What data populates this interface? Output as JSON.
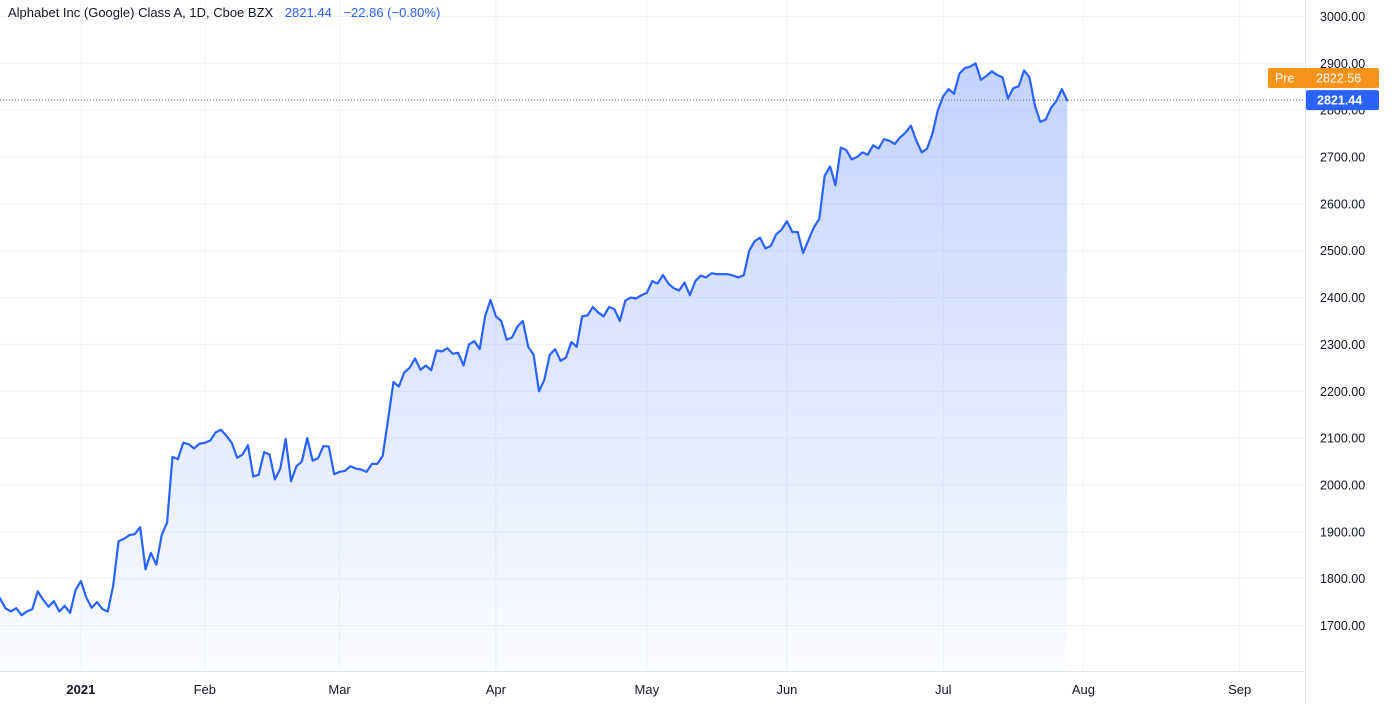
{
  "legend": {
    "symbol": "Alphabet Inc (Google) Class A, 1D, Cboe BZX",
    "last_value": "2821.44",
    "change": "−22.86 (−0.80%)"
  },
  "colors": {
    "line": "#2962ff",
    "area_top": "#2962ff",
    "grid": "#f0f3fa",
    "axis_text": "#131722",
    "legend_value": "#2962ff",
    "pre_badge": "#f7931a",
    "last_badge": "#2962ff",
    "price_line": "#5d606b"
  },
  "badges": {
    "pre_label": "Pre",
    "pre_value": "2822.56",
    "last_value": "2821.44"
  },
  "chart_data": {
    "type": "area",
    "y_ticks": [
      "3000.00",
      "2900.00",
      "2800.00",
      "2700.00",
      "2600.00",
      "2500.00",
      "2400.00",
      "2300.00",
      "2200.00",
      "2100.00",
      "2000.00",
      "1900.00",
      "1800.00",
      "1700.00"
    ],
    "x_ticks": [
      {
        "label": "2021",
        "index": 15,
        "bold": true
      },
      {
        "label": "Feb",
        "index": 38
      },
      {
        "label": "Mar",
        "index": 63
      },
      {
        "label": "Apr",
        "index": 92
      },
      {
        "label": "May",
        "index": 120
      },
      {
        "label": "Jun",
        "index": 146
      },
      {
        "label": "Jul",
        "index": 175
      },
      {
        "label": "Aug",
        "index": 201
      },
      {
        "label": "Sep",
        "index": 230
      }
    ],
    "ylim": [
      1605,
      3035
    ],
    "pre_value": 2822.56,
    "last_value": 2821.44,
    "values": [
      1758,
      1737,
      1730,
      1737,
      1722,
      1730,
      1735,
      1773,
      1755,
      1740,
      1752,
      1730,
      1742,
      1727,
      1775,
      1795,
      1760,
      1738,
      1750,
      1735,
      1730,
      1785,
      1880,
      1885,
      1893,
      1895,
      1910,
      1820,
      1855,
      1830,
      1893,
      1920,
      2060,
      2055,
      2090,
      2087,
      2078,
      2088,
      2090,
      2095,
      2112,
      2118,
      2105,
      2090,
      2058,
      2065,
      2085,
      2018,
      2022,
      2070,
      2065,
      2012,
      2035,
      2098,
      2008,
      2040,
      2050,
      2100,
      2052,
      2057,
      2083,
      2082,
      2023,
      2028,
      2030,
      2040,
      2035,
      2033,
      2028,
      2045,
      2045,
      2062,
      2140,
      2220,
      2210,
      2240,
      2250,
      2270,
      2246,
      2255,
      2245,
      2287,
      2285,
      2292,
      2280,
      2282,
      2255,
      2300,
      2307,
      2290,
      2360,
      2395,
      2360,
      2350,
      2310,
      2315,
      2338,
      2350,
      2295,
      2278,
      2200,
      2225,
      2278,
      2290,
      2265,
      2272,
      2305,
      2295,
      2360,
      2362,
      2380,
      2368,
      2360,
      2380,
      2375,
      2350,
      2393,
      2400,
      2398,
      2405,
      2410,
      2435,
      2430,
      2448,
      2430,
      2420,
      2415,
      2432,
      2405,
      2435,
      2447,
      2443,
      2452,
      2450,
      2450,
      2450,
      2447,
      2443,
      2448,
      2500,
      2520,
      2528,
      2505,
      2510,
      2535,
      2545,
      2563,
      2540,
      2540,
      2495,
      2523,
      2550,
      2568,
      2660,
      2680,
      2640,
      2720,
      2715,
      2695,
      2700,
      2710,
      2705,
      2725,
      2718,
      2738,
      2735,
      2728,
      2742,
      2752,
      2767,
      2735,
      2710,
      2718,
      2750,
      2800,
      2830,
      2845,
      2835,
      2878,
      2890,
      2893,
      2900,
      2865,
      2873,
      2883,
      2875,
      2870,
      2825,
      2847,
      2851,
      2885,
      2870,
      2810,
      2775,
      2780,
      2805,
      2820,
      2845,
      2821
    ]
  }
}
